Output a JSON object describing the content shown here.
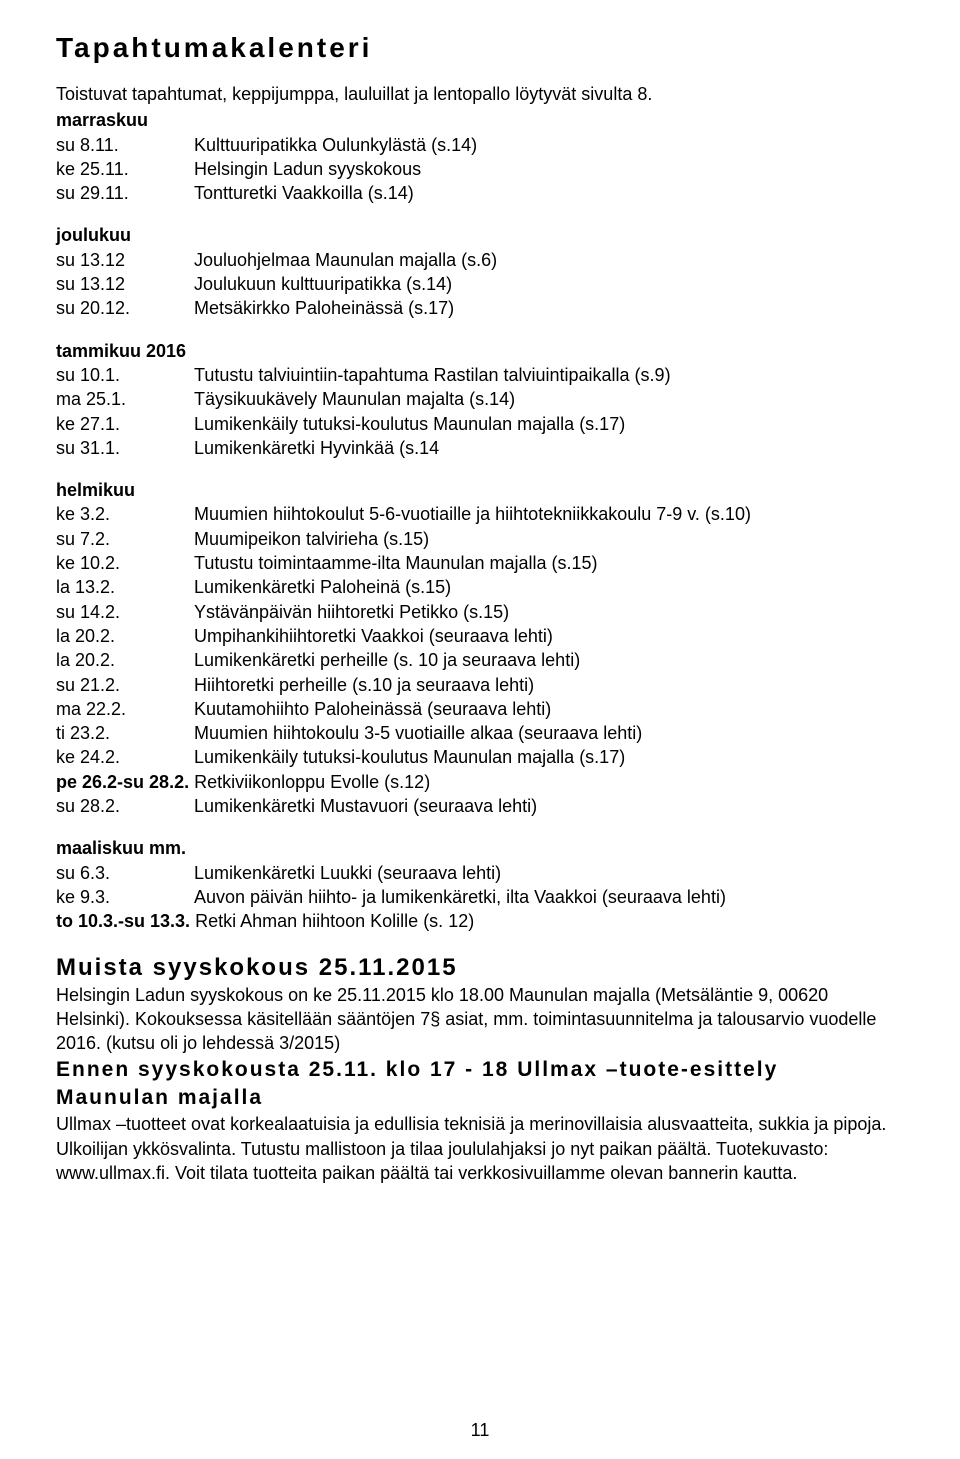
{
  "title": "Tapahtumakalenteri",
  "intro": "Toistuvat tapahtumat, keppijumppa, lauluillat ja lentopallo löytyvät sivulta 8.",
  "marraskuu": {
    "header": "marraskuu",
    "events": [
      {
        "date": "su 8.11.",
        "desc": "Kulttuuripatikka Oulunkylästä (s.14)"
      },
      {
        "date": "ke 25.11.",
        "desc": "Helsingin Ladun syyskokous"
      },
      {
        "date": "su 29.11.",
        "desc": "Tontturetki Vaakkoilla (s.14)"
      }
    ]
  },
  "joulukuu": {
    "header": "joulukuu",
    "events": [
      {
        "date": "su 13.12",
        "desc": "Jouluohjelmaa Maunulan majalla (s.6)"
      },
      {
        "date": "su 13.12",
        "desc": "Joulukuun kulttuuripatikka (s.14)"
      },
      {
        "date": "su 20.12.",
        "desc": "Metsäkirkko Paloheinässä (s.17)"
      }
    ]
  },
  "tammikuu": {
    "header": "tammikuu 2016",
    "events": [
      {
        "date": "su 10.1.",
        "desc": "Tutustu talviuintiin-tapahtuma Rastilan talviuintipaikalla (s.9)"
      },
      {
        "date": "ma 25.1.",
        "desc": "Täysikuukävely Maunulan majalta (s.14)"
      },
      {
        "date": "ke 27.1.",
        "desc": "Lumikenkäily tutuksi-koulutus Maunulan majalla (s.17)"
      },
      {
        "date": "su 31.1.",
        "desc": "Lumikenkäretki Hyvinkää (s.14"
      }
    ]
  },
  "helmikuu": {
    "header": "helmikuu",
    "events": [
      {
        "date": "ke 3.2.",
        "desc": "Muumien hiihtokoulut 5-6-vuotiaille ja hiihtotekniikkakoulu 7-9 v. (s.10)"
      },
      {
        "date": "su 7.2.",
        "desc": "Muumipeikon talvirieha (s.15)"
      },
      {
        "date": "ke 10.2.",
        "desc": "Tutustu toimintaamme-ilta Maunulan majalla (s.15)"
      },
      {
        "date": "la 13.2.",
        "desc": "Lumikenkäretki Paloheinä (s.15)"
      },
      {
        "date": "su 14.2.",
        "desc": "Ystävänpäivän hiihtoretki Petikko (s.15)"
      },
      {
        "date": "la 20.2.",
        "desc": "Umpihankihiihtoretki Vaakkoi (seuraava lehti)"
      },
      {
        "date": "la 20.2.",
        "desc": "Lumikenkäretki perheille (s. 10  ja seuraava lehti)"
      },
      {
        "date": "su 21.2.",
        "desc": "Hiihtoretki perheille (s.10 ja seuraava lehti)"
      },
      {
        "date": "ma 22.2.",
        "desc": "Kuutamohiihto Paloheinässä (seuraava lehti)"
      },
      {
        "date": "ti 23.2.",
        "desc": "Muumien hiihtokoulu 3-5 vuotiaille  alkaa (seuraava lehti)"
      },
      {
        "date": "ke 24.2.",
        "desc": "Lumikenkäily tutuksi-koulutus Maunulan majalla (s.17)"
      }
    ],
    "special1_prefix": "pe 26.2-su 28.2.",
    "special1_desc": " Retkiviikonloppu Evolle (s.12)",
    "tail_events": [
      {
        "date": "su 28.2.",
        "desc": "Lumikenkäretki Mustavuori (seuraava lehti)"
      }
    ]
  },
  "maaliskuu": {
    "header": "maaliskuu mm.",
    "events": [
      {
        "date": "su 6.3.",
        "desc": "Lumikenkäretki Luukki (seuraava lehti)"
      },
      {
        "date": "ke 9.3.",
        "desc": "Auvon päivän hiihto- ja lumikenkäretki, ilta Vaakkoi (seuraava lehti)"
      }
    ],
    "special_prefix": "to 10.3.-su 13.3.",
    "special_desc": " Retki Ahman hiihtoon Kolille (s. 12)"
  },
  "syyskokous": {
    "title": "Muista syyskokous 25.11.2015",
    "body": "Helsingin Ladun syyskokous on ke 25.11.2015 klo 18.00 Maunulan majalla (Metsäläntie 9, 00620 Helsinki). Kokouksessa käsitellään sääntöjen 7§ asiat, mm. toimintasuunnitelma ja talousarvio vuodelle 2016. (kutsu oli jo lehdessä 3/2015)"
  },
  "ennen": {
    "title1": "Ennen syyskokousta 25.11. klo 17 - 18 Ullmax –tuote-esittely",
    "title2": "Maunulan majalla",
    "body": "Ullmax –tuotteet ovat korkealaatuisia ja edullisia teknisiä ja merinovillaisia alusvaatteita, sukkia ja pipoja. Ulkoilijan ykkösvalinta. Tutustu mallistoon ja tilaa joululahjaksi jo nyt paikan päältä. Tuotekuvasto: www.ullmax.fi. Voit tilata tuotteita paikan päältä tai verkkosivuillamme olevan bannerin kautta."
  },
  "page_number": "11"
}
